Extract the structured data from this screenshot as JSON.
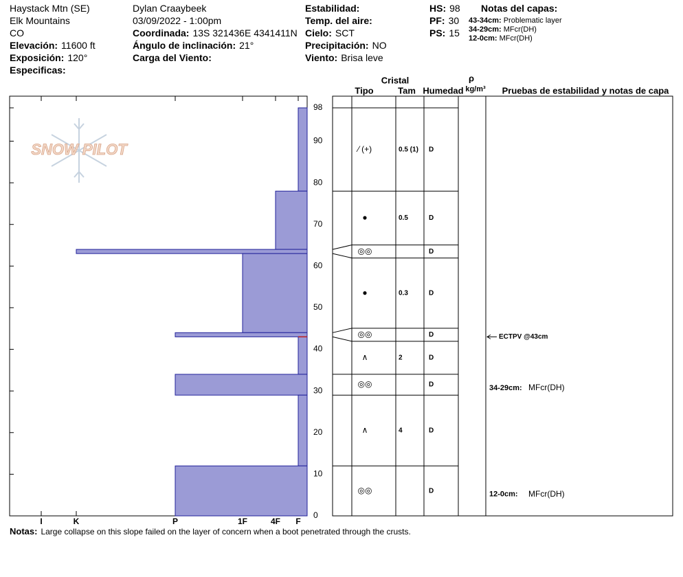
{
  "header": {
    "col1": [
      {
        "value": "Haystack Mtn (SE)"
      },
      {
        "value": "Elk Mountains"
      },
      {
        "value": "CO"
      },
      {
        "label": "Elevación:",
        "value": "11600 ft"
      },
      {
        "label": "Exposición:",
        "value": "120°"
      },
      {
        "label": "Especificas:"
      }
    ],
    "col2": [
      {
        "value": "Dylan Craaybeek"
      },
      {
        "value": "03/09/2022 - 1:00pm"
      },
      {
        "label": "Coordinada:",
        "value": "13S 321436E 4341411N"
      },
      {
        "label": "Ángulo de inclinación:",
        "value": "21°"
      },
      {
        "label": "Carga del Viento:"
      }
    ],
    "col3": [
      {
        "label": "Estabilidad:"
      },
      {
        "label": "Temp. del aire:"
      },
      {
        "label": "Cielo:",
        "value": "SCT"
      },
      {
        "label": "Precipitación:",
        "value": "NO"
      },
      {
        "label": "Viento:",
        "value": "Brisa leve"
      }
    ],
    "col4": [
      {
        "label": "HS:",
        "value": 98
      },
      {
        "label": "PF:",
        "value": 30
      },
      {
        "label": "PS:",
        "value": 15
      }
    ],
    "layer_notes_title": "Notas del capas:",
    "layer_notes": [
      {
        "label": "43-34cm:",
        "value": "Problematic layer"
      },
      {
        "label": "34-29cm:",
        "value": "MFcr(DH)"
      },
      {
        "label": "12-0cm:",
        "value": "MFcr(DH)"
      }
    ]
  },
  "logo": "SNOW PILOT",
  "chart_data": {
    "type": "snow_profile",
    "ylim": [
      0,
      98
    ],
    "yticks": [
      0,
      10,
      20,
      30,
      40,
      50,
      60,
      70,
      80,
      90,
      98
    ],
    "hardness_ticks": [
      "I",
      "K",
      "P",
      "1F",
      "4F",
      "F"
    ],
    "bar_color": "#9b9bd6",
    "columns": {
      "crystal": "Cristal",
      "type": "Tipo",
      "size": "Tam",
      "moisture": "Humedad",
      "density": "ρ",
      "density_unit": "kg/m³",
      "tests": "Pruebas de estabilidad y notas de capa"
    },
    "layers": [
      {
        "top": 98,
        "bottom": 78,
        "hardness": "F",
        "grain": "⁄ (+)",
        "size": "0.5 (1)",
        "moisture": "D"
      },
      {
        "top": 78,
        "bottom": 64,
        "hardness": "4F",
        "grain": "●",
        "size": "0.5",
        "moisture": "D"
      },
      {
        "top": 64,
        "bottom": 63,
        "hardness": "K",
        "grain": "◎◎",
        "moisture": "D"
      },
      {
        "top": 63,
        "bottom": 44,
        "hardness": "1F",
        "grain": "●",
        "size": "0.3",
        "moisture": "D"
      },
      {
        "top": 44,
        "bottom": 43,
        "hardness": "P",
        "grain": "◎◎",
        "moisture": "D"
      },
      {
        "top": 43,
        "bottom": 34,
        "hardness": "F",
        "grain": "∧",
        "size": "2",
        "moisture": "D"
      },
      {
        "top": 34,
        "bottom": 29,
        "hardness": "P",
        "grain": "◎◎",
        "moisture": "D",
        "note_label": "34-29cm:",
        "note": "MFcr(DH)"
      },
      {
        "top": 29,
        "bottom": 12,
        "hardness": "F",
        "grain": "∧",
        "size": "4",
        "moisture": "D"
      },
      {
        "top": 12,
        "bottom": 0,
        "hardness": "P",
        "grain": "◎◎",
        "moisture": "D",
        "note_label": "12-0cm:",
        "note": "MFcr(DH)"
      }
    ],
    "tests": [
      {
        "label": "ECTPV @43cm",
        "depth": 43,
        "color": "#c02020"
      }
    ]
  },
  "notes": {
    "label": "Notas:",
    "text": "Large collapse on this slope failed on the layer of concern when a boot penetrated through the crusts."
  }
}
